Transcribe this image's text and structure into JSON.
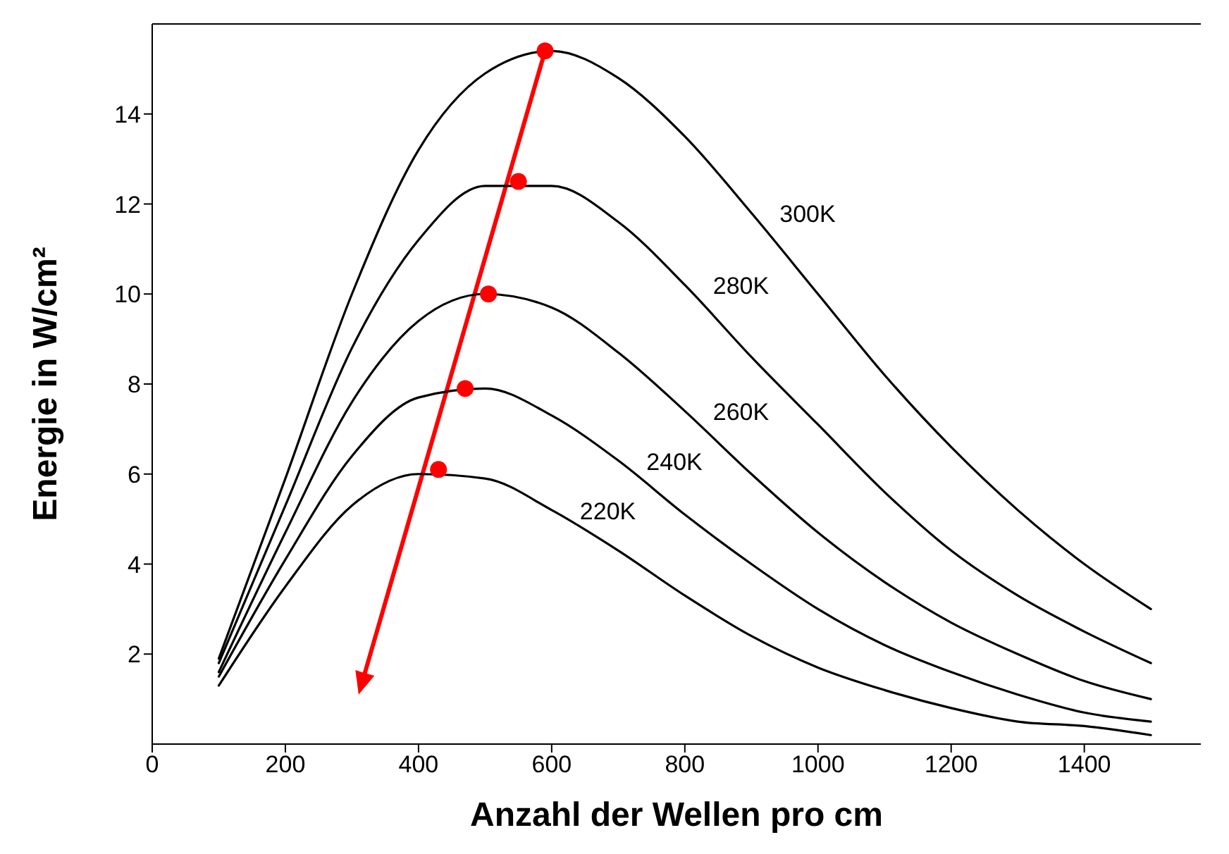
{
  "chart_data": {
    "type": "line",
    "xlabel": "Anzahl der Wellen pro cm",
    "ylabel": "Energie in W/cm²",
    "xlim": [
      0,
      1575
    ],
    "xticks": [
      0,
      200,
      400,
      600,
      800,
      1000,
      1200,
      1400
    ],
    "ylim": [
      0,
      16
    ],
    "yticks": [
      2,
      4,
      6,
      8,
      10,
      12,
      14
    ],
    "grid": false,
    "legend": false,
    "x": [
      100,
      200,
      300,
      400,
      500,
      600,
      700,
      800,
      900,
      1000,
      1100,
      1200,
      1300,
      1400,
      1500
    ],
    "series": [
      {
        "name": "300K",
        "color": "#000000",
        "marker": "none",
        "values": [
          1.9,
          5.9,
          10.0,
          13.2,
          14.9,
          15.4,
          14.8,
          13.5,
          11.8,
          10.0,
          8.2,
          6.6,
          5.2,
          4.0,
          3.0
        ]
      },
      {
        "name": "280K",
        "color": "#000000",
        "marker": "none",
        "values": [
          1.8,
          5.3,
          8.8,
          11.2,
          12.4,
          12.4,
          11.6,
          10.2,
          8.6,
          7.1,
          5.6,
          4.3,
          3.3,
          2.5,
          1.8
        ]
      },
      {
        "name": "260K",
        "color": "#000000",
        "marker": "none",
        "values": [
          1.6,
          4.7,
          7.6,
          9.4,
          10.0,
          9.7,
          8.7,
          7.4,
          6.0,
          4.7,
          3.6,
          2.7,
          2.0,
          1.4,
          1.0
        ]
      },
      {
        "name": "240K",
        "color": "#000000",
        "marker": "none",
        "values": [
          1.5,
          4.1,
          6.4,
          7.7,
          7.9,
          7.3,
          6.3,
          5.1,
          4.0,
          3.0,
          2.2,
          1.6,
          1.1,
          0.7,
          0.5
        ]
      },
      {
        "name": "220K",
        "color": "#000000",
        "marker": "none",
        "values": [
          1.3,
          3.5,
          5.3,
          6.0,
          5.9,
          5.2,
          4.3,
          3.3,
          2.4,
          1.7,
          1.2,
          0.8,
          0.5,
          0.4,
          0.2
        ]
      },
      {
        "type": "scatter",
        "color": "#ff0000",
        "marker": "circle",
        "x": [
          590,
          550,
          505,
          470,
          430
        ],
        "values": [
          15.4,
          12.5,
          10.0,
          7.9,
          6.1
        ]
      }
    ]
  }
}
